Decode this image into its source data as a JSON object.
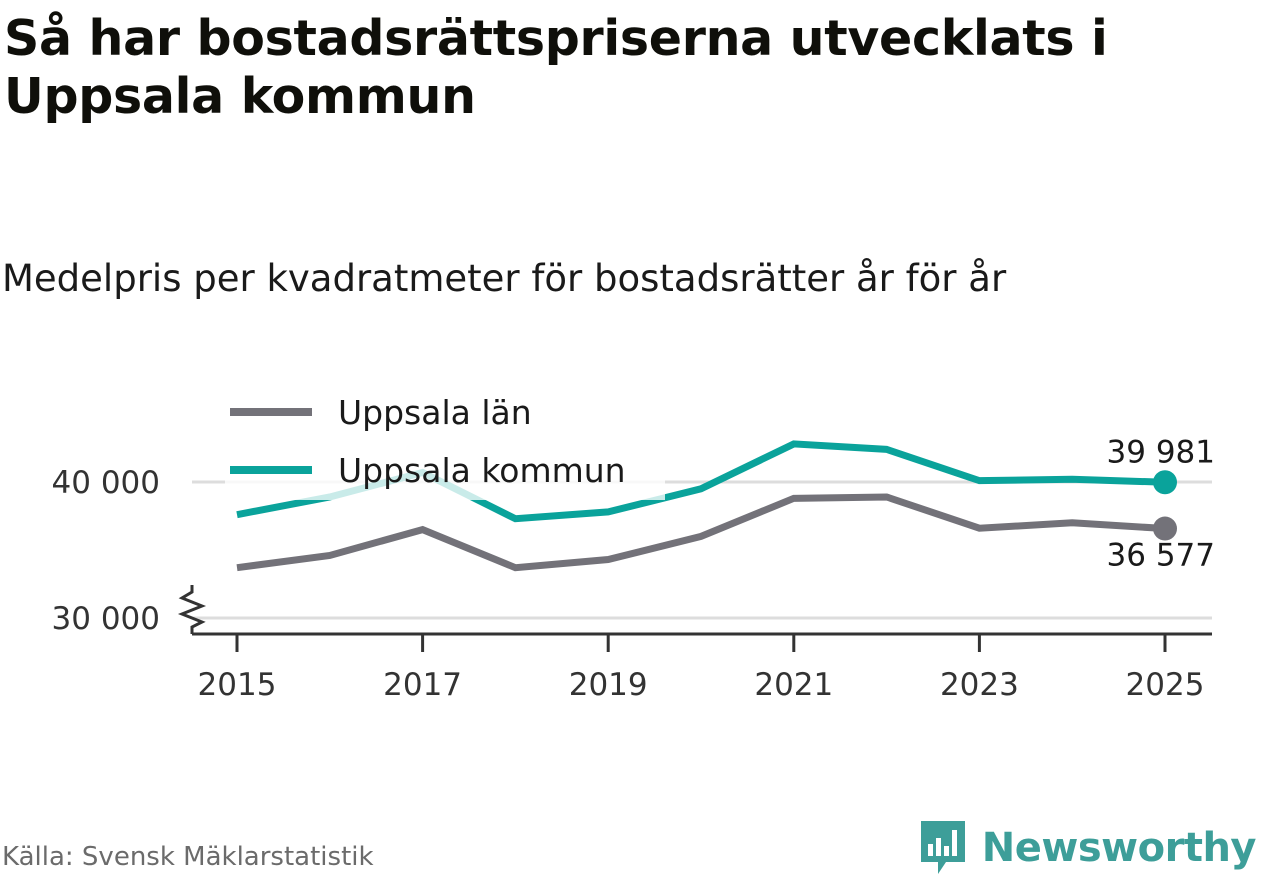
{
  "title": "Så har bostadsrättspriserna utvecklats i Uppsala kommun",
  "subtitle": "Medelpris per kvadratmeter för bostadsrätter år för år",
  "source": "Källa: Svensk Mäklarstatistik",
  "brand": "Newsworthy",
  "colors": {
    "lan": "#737279",
    "kommun": "#0aa39b",
    "grid": "#dddddd",
    "axis": "#333333"
  },
  "chart_data": {
    "type": "line",
    "title": "Så har bostadsrättspriserna utvecklats i Uppsala kommun",
    "subtitle": "Medelpris per kvadratmeter för bostadsrätter år för år",
    "x": [
      2015,
      2016,
      2017,
      2018,
      2019,
      2020,
      2021,
      2022,
      2023,
      2024,
      2025
    ],
    "x_tick_labels": [
      "2015",
      "2017",
      "2019",
      "2021",
      "2023",
      "2025"
    ],
    "y_ticks": [
      30000,
      40000
    ],
    "y_tick_labels": [
      "30 000",
      "40 000"
    ],
    "ylim": [
      28500,
      42800
    ],
    "y_axis_break": true,
    "grid": true,
    "legend_position": "top-left",
    "series": [
      {
        "name": "Uppsala län",
        "color_key": "lan",
        "values": [
          33700,
          34600,
          36500,
          33700,
          34300,
          36000,
          38800,
          38900,
          36600,
          37000,
          36577
        ],
        "end_label": "36 577"
      },
      {
        "name": "Uppsala kommun",
        "color_key": "kommun",
        "values": [
          37600,
          38900,
          40700,
          37300,
          37800,
          39500,
          42800,
          42400,
          40100,
          40200,
          39981
        ],
        "end_label": "39 981"
      }
    ]
  }
}
